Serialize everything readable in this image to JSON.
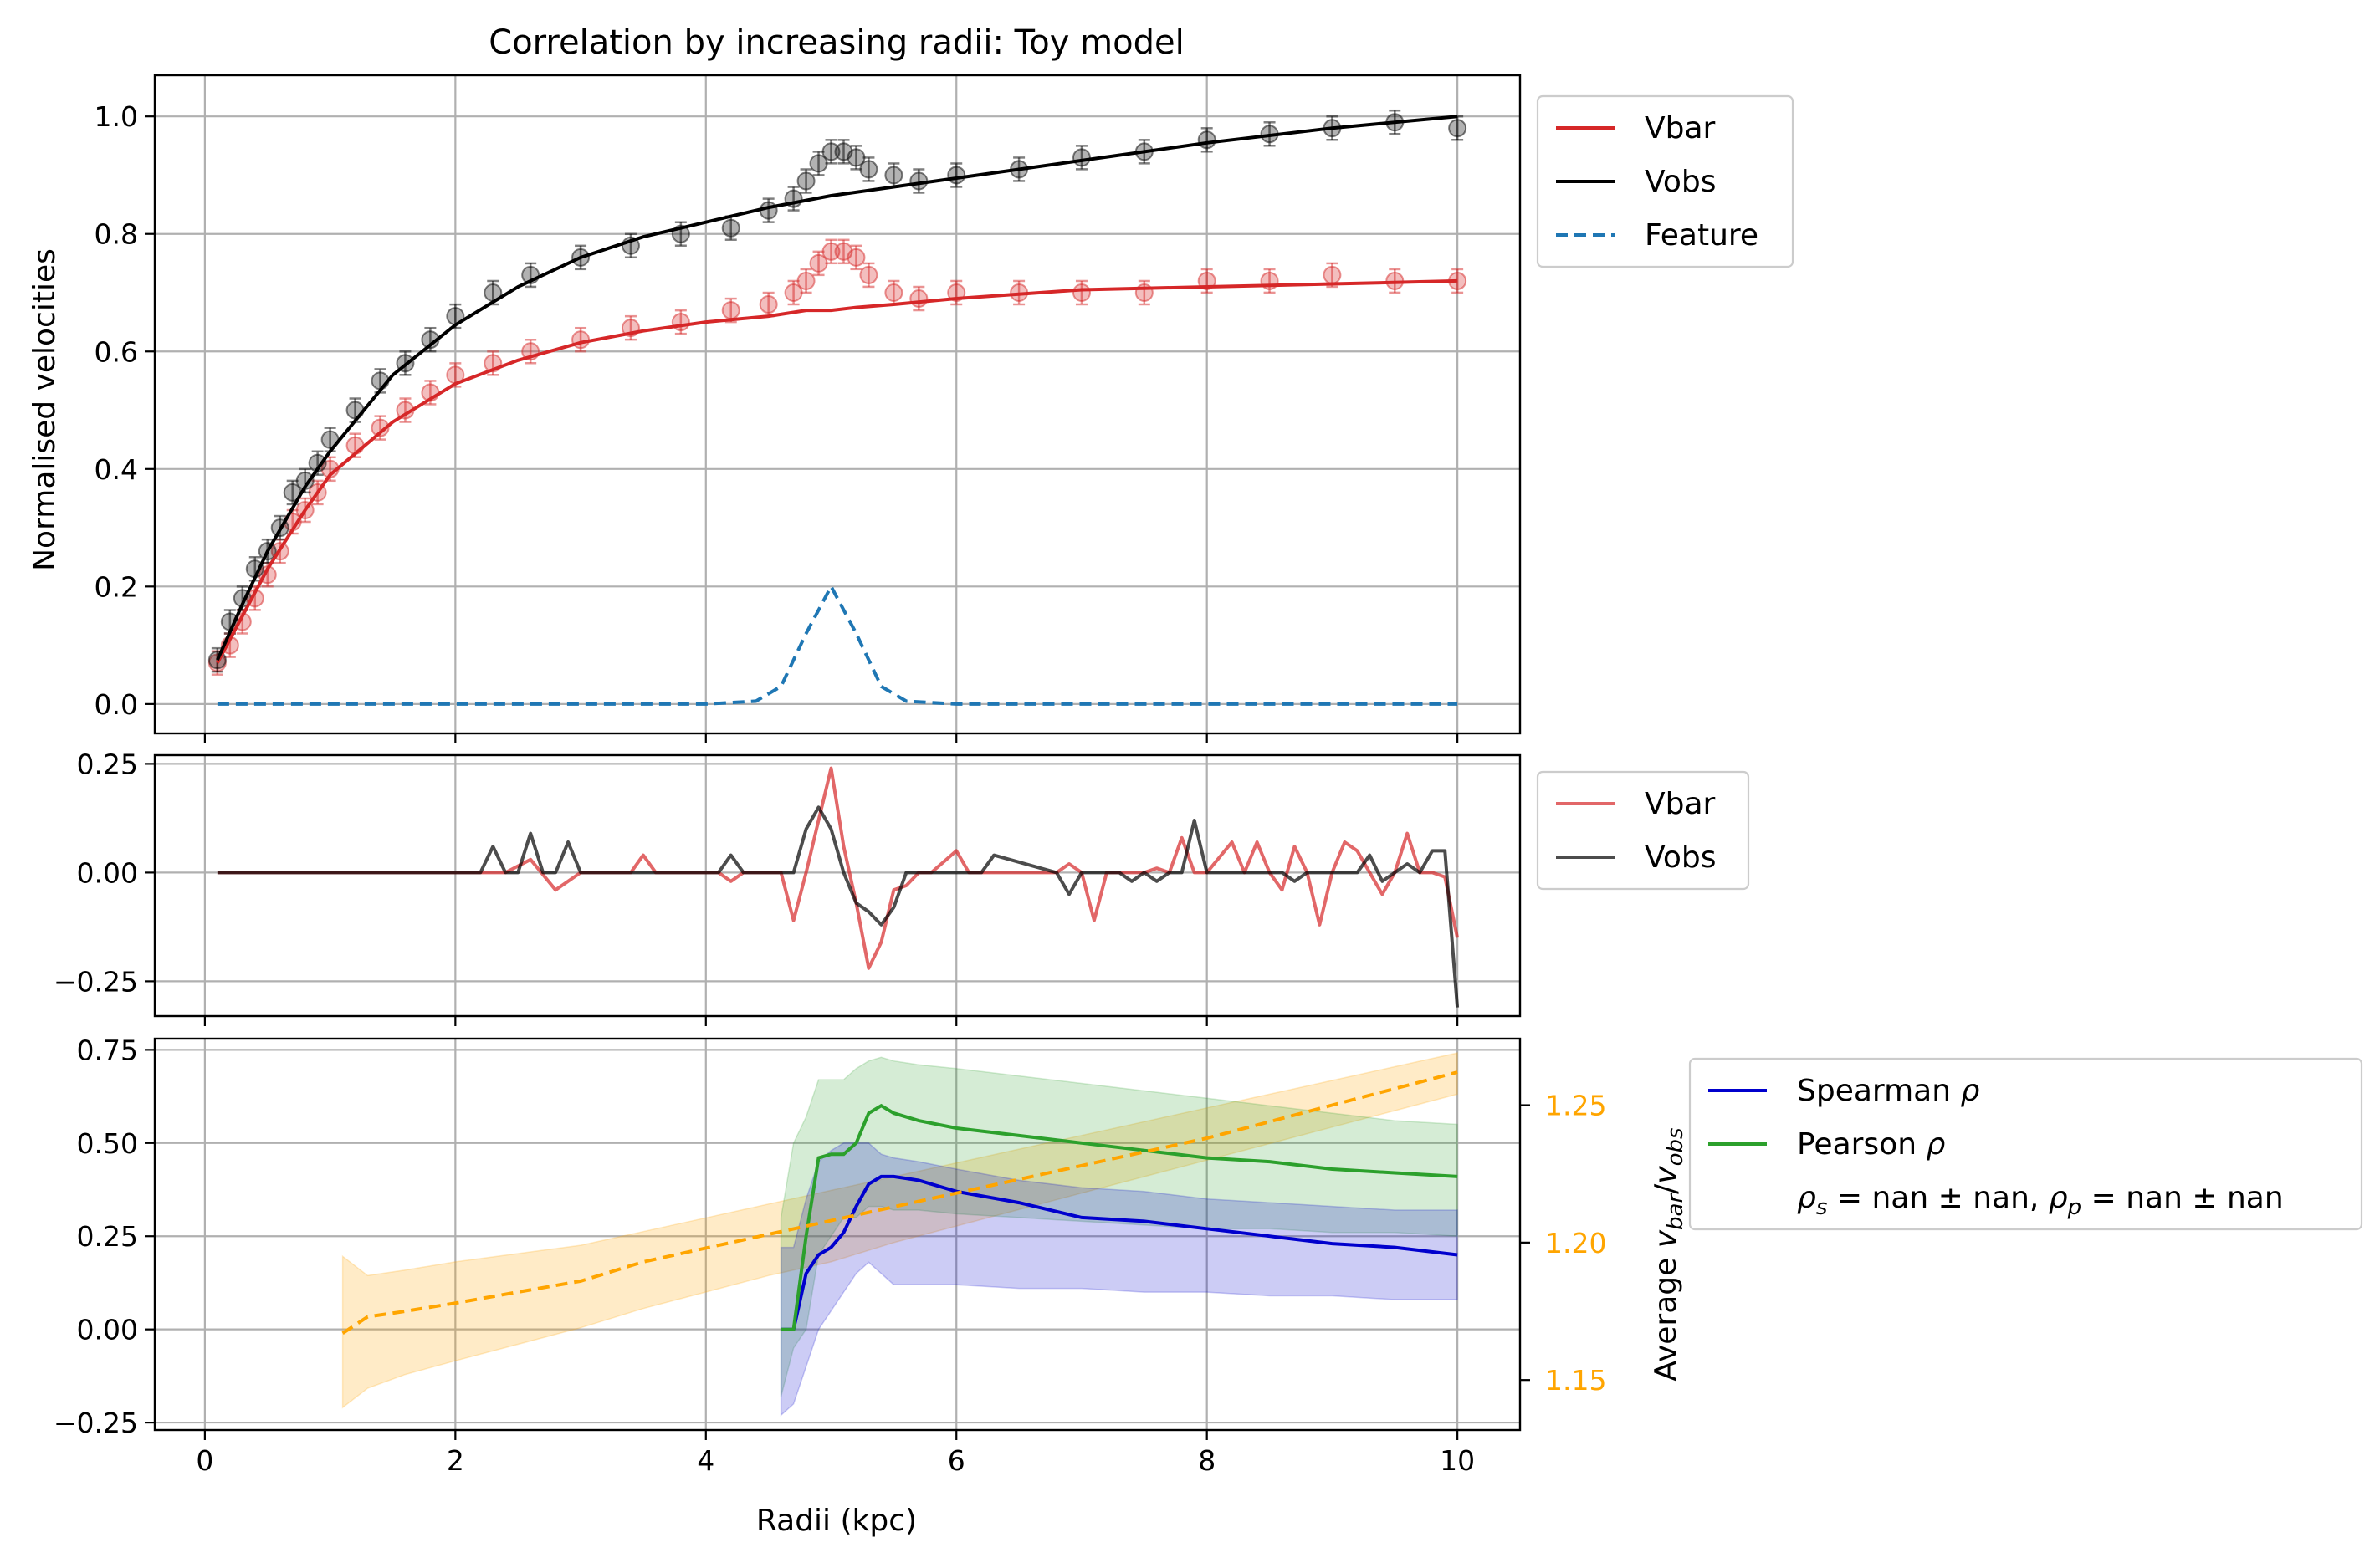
{
  "chart_data": [
    {
      "type": "line",
      "title": "Correlation by increasing radii: Toy model",
      "xlabel": "",
      "ylabel": "Normalised velocities",
      "xlim": [
        -0.4,
        10.5
      ],
      "ylim": [
        -0.05,
        1.07
      ],
      "xticks": [
        0,
        2,
        4,
        6,
        8,
        10
      ],
      "yticks": [
        0.0,
        0.2,
        0.4,
        0.6,
        0.8,
        1.0
      ],
      "ytick_labels": [
        "0.0",
        "0.2",
        "0.4",
        "0.6",
        "0.8",
        "1.0"
      ],
      "grid": true,
      "legend_placement": "outside right, top",
      "legend": [
        "Vbar",
        "Vobs",
        "Feature"
      ],
      "series": [
        {
          "name": "Vbar",
          "style": "solid line with scattered error-bar points",
          "color": "#d62728",
          "x": [
            0.1,
            0.3,
            0.5,
            0.8,
            1.0,
            1.5,
            2.0,
            2.5,
            3.0,
            3.5,
            4.0,
            4.5,
            4.8,
            5.0,
            5.2,
            5.5,
            6.0,
            7.0,
            8.0,
            9.0,
            10.0
          ],
          "y": [
            0.07,
            0.15,
            0.23,
            0.33,
            0.39,
            0.48,
            0.545,
            0.585,
            0.615,
            0.635,
            0.65,
            0.66,
            0.67,
            0.67,
            0.675,
            0.68,
            0.69,
            0.705,
            0.71,
            0.715,
            0.72
          ]
        },
        {
          "name": "Vobs",
          "style": "solid line with scattered error-bar points",
          "color": "#000000",
          "x": [
            0.1,
            0.3,
            0.5,
            0.8,
            1.0,
            1.5,
            2.0,
            2.5,
            3.0,
            3.5,
            4.0,
            4.5,
            5.0,
            5.5,
            6.0,
            7.0,
            8.0,
            9.0,
            10.0
          ],
          "y": [
            0.075,
            0.17,
            0.26,
            0.37,
            0.43,
            0.56,
            0.645,
            0.71,
            0.76,
            0.795,
            0.82,
            0.845,
            0.865,
            0.88,
            0.895,
            0.925,
            0.955,
            0.98,
            1.0
          ]
        },
        {
          "name": "Feature",
          "style": "dashed",
          "color": "#1f77b4",
          "x": [
            0.1,
            4.0,
            4.4,
            4.6,
            4.8,
            5.0,
            5.2,
            5.4,
            5.6,
            6.0,
            10.0
          ],
          "y": [
            0.0,
            0.0,
            0.005,
            0.03,
            0.12,
            0.2,
            0.12,
            0.03,
            0.005,
            0.0,
            0.0
          ]
        }
      ],
      "scatter": [
        {
          "name": "Vbar points",
          "color": "#d62728",
          "x": [
            0.1,
            0.2,
            0.3,
            0.4,
            0.5,
            0.6,
            0.7,
            0.8,
            0.9,
            1.0,
            1.2,
            1.4,
            1.6,
            1.8,
            2.0,
            2.3,
            2.6,
            3.0,
            3.4,
            3.8,
            4.2,
            4.5,
            4.7,
            4.8,
            4.9,
            5.0,
            5.1,
            5.2,
            5.3,
            5.5,
            5.7,
            6.0,
            6.5,
            7.0,
            7.5,
            8.0,
            8.5,
            9.0,
            9.5,
            10.0
          ],
          "y": [
            0.07,
            0.1,
            0.14,
            0.18,
            0.22,
            0.26,
            0.31,
            0.33,
            0.36,
            0.4,
            0.44,
            0.47,
            0.5,
            0.53,
            0.56,
            0.58,
            0.6,
            0.62,
            0.64,
            0.65,
            0.67,
            0.68,
            0.7,
            0.72,
            0.75,
            0.77,
            0.77,
            0.76,
            0.73,
            0.7,
            0.69,
            0.7,
            0.7,
            0.7,
            0.7,
            0.72,
            0.72,
            0.73,
            0.72,
            0.72
          ]
        },
        {
          "name": "Vobs points",
          "color": "#000000",
          "x": [
            0.1,
            0.2,
            0.3,
            0.4,
            0.5,
            0.6,
            0.7,
            0.8,
            0.9,
            1.0,
            1.2,
            1.4,
            1.6,
            1.8,
            2.0,
            2.3,
            2.6,
            3.0,
            3.4,
            3.8,
            4.2,
            4.5,
            4.7,
            4.8,
            4.9,
            5.0,
            5.1,
            5.2,
            5.3,
            5.5,
            5.7,
            6.0,
            6.5,
            7.0,
            7.5,
            8.0,
            8.5,
            9.0,
            9.5,
            10.0
          ],
          "y": [
            0.075,
            0.14,
            0.18,
            0.23,
            0.26,
            0.3,
            0.36,
            0.38,
            0.41,
            0.45,
            0.5,
            0.55,
            0.58,
            0.62,
            0.66,
            0.7,
            0.73,
            0.76,
            0.78,
            0.8,
            0.81,
            0.84,
            0.86,
            0.89,
            0.92,
            0.94,
            0.94,
            0.93,
            0.91,
            0.9,
            0.89,
            0.9,
            0.91,
            0.93,
            0.94,
            0.96,
            0.97,
            0.98,
            0.99,
            0.98
          ]
        }
      ]
    },
    {
      "type": "line",
      "title": "",
      "xlabel": "",
      "ylabel": "",
      "xlim": [
        -0.4,
        10.5
      ],
      "ylim": [
        -0.33,
        0.27
      ],
      "xticks": [
        0,
        2,
        4,
        6,
        8,
        10
      ],
      "yticks": [
        -0.25,
        0.0,
        0.25
      ],
      "ytick_labels": [
        "−0.25",
        "0.00",
        "0.25"
      ],
      "grid": true,
      "legend_placement": "outside right, top",
      "legend": [
        "Vbar",
        "Vobs"
      ],
      "series": [
        {
          "name": "Vbar",
          "color": "#d62728",
          "alpha": 0.7,
          "x": [
            0.1,
            2.1,
            2.4,
            2.6,
            2.8,
            3.0,
            3.4,
            3.5,
            3.6,
            4.1,
            4.2,
            4.3,
            4.6,
            4.7,
            4.8,
            4.9,
            5.0,
            5.1,
            5.2,
            5.3,
            5.4,
            5.5,
            5.6,
            5.7,
            5.8,
            6.0,
            6.1,
            6.3,
            6.8,
            6.9,
            7.0,
            7.1,
            7.2,
            7.3,
            7.5,
            7.6,
            7.7,
            7.8,
            7.9,
            8.0,
            8.2,
            8.3,
            8.4,
            8.5,
            8.6,
            8.7,
            8.8,
            8.9,
            9.0,
            9.1,
            9.2,
            9.3,
            9.4,
            9.5,
            9.6,
            9.7,
            9.8,
            9.9,
            10.0
          ],
          "y": [
            0.0,
            0.0,
            0.0,
            0.03,
            -0.04,
            0.0,
            0.0,
            0.04,
            0.0,
            0.0,
            -0.02,
            0.0,
            0.0,
            -0.11,
            0.0,
            0.12,
            0.24,
            0.06,
            -0.07,
            -0.22,
            -0.16,
            -0.04,
            -0.03,
            0.0,
            0.0,
            0.05,
            0.0,
            0.0,
            0.0,
            0.02,
            0.0,
            -0.11,
            0.0,
            0.0,
            0.0,
            0.01,
            0.0,
            0.08,
            0.0,
            0.0,
            0.07,
            0.0,
            0.07,
            0.0,
            -0.04,
            0.06,
            0.0,
            -0.12,
            0.0,
            0.07,
            0.05,
            0.0,
            -0.05,
            0.0,
            0.09,
            0.0,
            0.0,
            -0.01,
            -0.15
          ]
        },
        {
          "name": "Vobs",
          "color": "#000000",
          "alpha": 0.7,
          "x": [
            0.1,
            2.2,
            2.3,
            2.4,
            2.5,
            2.6,
            2.7,
            2.8,
            2.9,
            3.0,
            4.1,
            4.2,
            4.3,
            4.6,
            4.7,
            4.8,
            4.9,
            5.0,
            5.1,
            5.2,
            5.3,
            5.4,
            5.5,
            5.6,
            6.2,
            6.3,
            6.8,
            6.9,
            7.0,
            7.3,
            7.4,
            7.5,
            7.6,
            7.7,
            7.8,
            7.9,
            8.0,
            8.6,
            8.7,
            8.8,
            9.0,
            9.1,
            9.2,
            9.3,
            9.4,
            9.5,
            9.6,
            9.7,
            9.8,
            9.9,
            10.0
          ],
          "y": [
            0.0,
            0.0,
            0.06,
            0.0,
            0.0,
            0.09,
            0.0,
            0.0,
            0.07,
            0.0,
            0.0,
            0.04,
            0.0,
            0.0,
            0.0,
            0.1,
            0.15,
            0.1,
            0.0,
            -0.07,
            -0.09,
            -0.12,
            -0.08,
            0.0,
            0.0,
            0.04,
            0.0,
            -0.05,
            0.0,
            0.0,
            -0.02,
            0.0,
            -0.02,
            0.0,
            0.0,
            0.12,
            0.0,
            0.0,
            -0.02,
            0.0,
            0.0,
            0.0,
            0.0,
            0.04,
            -0.02,
            0.0,
            0.02,
            0.0,
            0.05,
            0.05,
            -0.31
          ]
        }
      ]
    },
    {
      "type": "line",
      "title": "",
      "xlabel": "Radii (kpc)",
      "ylabel": "",
      "y2label": "Average v_bar/v_obs",
      "xlim": [
        -0.4,
        10.5
      ],
      "ylim": [
        -0.27,
        0.78
      ],
      "y2lim": [
        1.1318,
        1.2742
      ],
      "xticks": [
        0,
        2,
        4,
        6,
        8,
        10
      ],
      "yticks": [
        -0.25,
        0.0,
        0.25,
        0.5,
        0.75
      ],
      "ytick_labels": [
        "−0.25",
        "0.00",
        "0.25",
        "0.50",
        "0.75"
      ],
      "y2ticks": [
        1.15,
        1.2,
        1.25
      ],
      "y2tick_labels": [
        "1.15",
        "1.20",
        "1.25"
      ],
      "grid": true,
      "legend_placement": "outside right, top",
      "legend": [
        "Spearman ρ",
        "Pearson ρ",
        "ρs = nan ± nan, ρp = nan ± nan"
      ],
      "series": [
        {
          "name": "Spearman ρ",
          "color": "#0000cd",
          "axis": "left",
          "x": [
            4.6,
            4.7,
            4.8,
            4.9,
            5.0,
            5.1,
            5.2,
            5.3,
            5.4,
            5.5,
            5.7,
            6.0,
            6.5,
            7.0,
            7.5,
            8.0,
            8.5,
            9.0,
            9.5,
            10.0
          ],
          "y": [
            0.0,
            0.0,
            0.15,
            0.2,
            0.22,
            0.26,
            0.33,
            0.39,
            0.41,
            0.41,
            0.4,
            0.37,
            0.34,
            0.3,
            0.29,
            0.27,
            0.25,
            0.23,
            0.22,
            0.2
          ],
          "band_low": [
            -0.23,
            -0.2,
            -0.1,
            0.0,
            0.05,
            0.1,
            0.15,
            0.18,
            0.15,
            0.12,
            0.12,
            0.12,
            0.11,
            0.11,
            0.1,
            0.1,
            0.09,
            0.09,
            0.08,
            0.08
          ],
          "band_high": [
            0.22,
            0.22,
            0.35,
            0.45,
            0.48,
            0.5,
            0.5,
            0.5,
            0.47,
            0.46,
            0.45,
            0.43,
            0.4,
            0.38,
            0.37,
            0.35,
            0.34,
            0.33,
            0.32,
            0.32
          ]
        },
        {
          "name": "Pearson ρ",
          "color": "#2ca02c",
          "axis": "left",
          "x": [
            4.6,
            4.7,
            4.8,
            4.9,
            5.0,
            5.1,
            5.2,
            5.3,
            5.4,
            5.5,
            5.7,
            6.0,
            6.5,
            7.0,
            7.5,
            8.0,
            8.5,
            9.0,
            9.5,
            10.0
          ],
          "y": [
            0.0,
            0.0,
            0.25,
            0.46,
            0.47,
            0.47,
            0.5,
            0.58,
            0.6,
            0.58,
            0.56,
            0.54,
            0.52,
            0.5,
            0.48,
            0.46,
            0.45,
            0.43,
            0.42,
            0.41
          ],
          "band_low": [
            -0.18,
            -0.05,
            0.0,
            0.2,
            0.25,
            0.3,
            0.3,
            0.33,
            0.33,
            0.32,
            0.32,
            0.31,
            0.3,
            0.29,
            0.28,
            0.27,
            0.27,
            0.26,
            0.26,
            0.25
          ],
          "band_high": [
            0.3,
            0.5,
            0.57,
            0.67,
            0.67,
            0.67,
            0.7,
            0.72,
            0.73,
            0.72,
            0.71,
            0.7,
            0.68,
            0.66,
            0.64,
            0.62,
            0.6,
            0.58,
            0.56,
            0.55
          ]
        },
        {
          "name": "Average v_bar/v_obs",
          "color": "#ffa500",
          "style": "dashed",
          "axis": "right",
          "x": [
            1.1,
            1.3,
            1.6,
            2.0,
            2.5,
            3.0,
            3.5,
            4.0,
            4.5,
            5.0,
            5.5,
            6.0,
            6.5,
            7.0,
            7.5,
            8.0,
            8.5,
            9.0,
            9.5,
            10.0
          ],
          "y": [
            1.167,
            1.173,
            1.175,
            1.178,
            1.182,
            1.186,
            1.193,
            1.198,
            1.203,
            1.208,
            1.213,
            1.218,
            1.223,
            1.228,
            1.233,
            1.238,
            1.244,
            1.25,
            1.256,
            1.262
          ],
          "band_low": [
            1.14,
            1.147,
            1.152,
            1.157,
            1.163,
            1.169,
            1.176,
            1.182,
            1.188,
            1.193,
            1.2,
            1.206,
            1.212,
            1.218,
            1.224,
            1.23,
            1.236,
            1.242,
            1.248,
            1.254
          ],
          "band_high": [
            1.195,
            1.188,
            1.19,
            1.193,
            1.196,
            1.199,
            1.204,
            1.209,
            1.214,
            1.219,
            1.224,
            1.229,
            1.234,
            1.239,
            1.244,
            1.249,
            1.254,
            1.259,
            1.264,
            1.269
          ]
        }
      ]
    }
  ]
}
